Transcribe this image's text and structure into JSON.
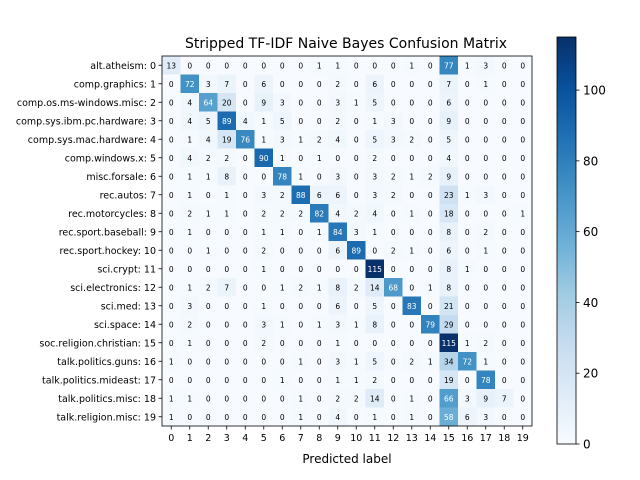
{
  "chart_data": {
    "type": "heatmap",
    "title": "Stripped TF-IDF Naive Bayes Confusion Matrix",
    "xlabel": "Predicted label",
    "ylabel": "",
    "x_tick_labels": [
      "0",
      "1",
      "2",
      "3",
      "4",
      "5",
      "6",
      "7",
      "8",
      "9",
      "10",
      "11",
      "12",
      "13",
      "14",
      "15",
      "16",
      "17",
      "18",
      "19"
    ],
    "y_tick_labels": [
      "alt.atheism: 0",
      "comp.graphics: 1",
      "comp.os.ms-windows.misc: 2",
      "comp.sys.ibm.pc.hardware: 3",
      "comp.sys.mac.hardware: 4",
      "comp.windows.x: 5",
      "misc.forsale: 6",
      "rec.autos: 7",
      "rec.motorcycles: 8",
      "rec.sport.baseball: 9",
      "rec.sport.hockey: 10",
      "sci.crypt: 11",
      "sci.electronics: 12",
      "sci.med: 13",
      "sci.space: 14",
      "soc.religion.christian: 15",
      "talk.politics.guns: 16",
      "talk.politics.mideast: 17",
      "talk.politics.misc: 18",
      "talk.religion.misc: 19"
    ],
    "matrix": [
      [
        13,
        0,
        0,
        0,
        0,
        0,
        0,
        0,
        1,
        1,
        0,
        0,
        0,
        1,
        0,
        77,
        1,
        3,
        0,
        0
      ],
      [
        0,
        72,
        3,
        7,
        0,
        6,
        0,
        0,
        0,
        2,
        0,
        6,
        0,
        0,
        0,
        7,
        0,
        1,
        0,
        0
      ],
      [
        0,
        4,
        64,
        20,
        0,
        9,
        3,
        0,
        0,
        3,
        1,
        5,
        0,
        0,
        0,
        6,
        0,
        0,
        0,
        0
      ],
      [
        0,
        4,
        5,
        89,
        4,
        1,
        5,
        0,
        0,
        2,
        0,
        1,
        3,
        0,
        0,
        9,
        0,
        0,
        0,
        0
      ],
      [
        0,
        1,
        4,
        19,
        76,
        1,
        3,
        1,
        2,
        4,
        0,
        5,
        3,
        2,
        0,
        5,
        0,
        0,
        0,
        0
      ],
      [
        0,
        4,
        2,
        2,
        0,
        90,
        1,
        0,
        1,
        0,
        0,
        2,
        0,
        0,
        0,
        4,
        0,
        0,
        0,
        0
      ],
      [
        0,
        1,
        1,
        8,
        0,
        0,
        78,
        1,
        0,
        3,
        0,
        3,
        2,
        1,
        2,
        9,
        0,
        0,
        0,
        0
      ],
      [
        0,
        1,
        0,
        1,
        0,
        3,
        2,
        88,
        6,
        6,
        0,
        3,
        2,
        0,
        0,
        23,
        1,
        3,
        0,
        0
      ],
      [
        0,
        2,
        1,
        1,
        0,
        2,
        2,
        2,
        82,
        4,
        2,
        4,
        0,
        1,
        0,
        18,
        0,
        0,
        0,
        1
      ],
      [
        0,
        1,
        0,
        0,
        0,
        1,
        1,
        0,
        1,
        84,
        3,
        1,
        0,
        0,
        0,
        8,
        0,
        2,
        0,
        0
      ],
      [
        0,
        0,
        1,
        0,
        0,
        2,
        0,
        0,
        0,
        6,
        89,
        0,
        2,
        1,
        0,
        6,
        0,
        1,
        0,
        0
      ],
      [
        0,
        0,
        0,
        0,
        0,
        1,
        0,
        0,
        0,
        0,
        0,
        115,
        0,
        0,
        0,
        8,
        1,
        0,
        0,
        0
      ],
      [
        0,
        1,
        2,
        7,
        0,
        0,
        1,
        2,
        1,
        8,
        2,
        14,
        68,
        0,
        1,
        8,
        0,
        0,
        0,
        0
      ],
      [
        0,
        3,
        0,
        0,
        0,
        1,
        0,
        0,
        0,
        6,
        0,
        5,
        0,
        83,
        0,
        21,
        0,
        0,
        0,
        0
      ],
      [
        0,
        2,
        0,
        0,
        0,
        3,
        1,
        0,
        1,
        3,
        1,
        8,
        0,
        0,
        79,
        29,
        0,
        0,
        0,
        0
      ],
      [
        0,
        1,
        0,
        0,
        0,
        2,
        0,
        0,
        0,
        1,
        0,
        0,
        0,
        0,
        0,
        115,
        1,
        2,
        0,
        0
      ],
      [
        1,
        0,
        0,
        0,
        0,
        0,
        0,
        1,
        0,
        3,
        1,
        5,
        0,
        2,
        1,
        34,
        72,
        1,
        0,
        0
      ],
      [
        0,
        0,
        0,
        0,
        0,
        0,
        1,
        0,
        0,
        1,
        1,
        2,
        0,
        0,
        0,
        19,
        0,
        78,
        0,
        0
      ],
      [
        1,
        1,
        0,
        0,
        0,
        0,
        0,
        1,
        0,
        2,
        2,
        14,
        0,
        1,
        0,
        66,
        3,
        9,
        7,
        0
      ],
      [
        1,
        0,
        0,
        0,
        0,
        0,
        0,
        1,
        0,
        4,
        0,
        1,
        0,
        1,
        0,
        58,
        6,
        3,
        0,
        0
      ]
    ],
    "value_range": [
      0,
      115
    ],
    "colormap": "Blues",
    "colorbar_ticks": [
      "0",
      "20",
      "40",
      "60",
      "80",
      "100"
    ],
    "colorbar_tick_values": [
      0,
      20,
      40,
      60,
      80,
      100
    ],
    "colors": {
      "low": "#f7fbff",
      "high": "#08306b"
    }
  }
}
